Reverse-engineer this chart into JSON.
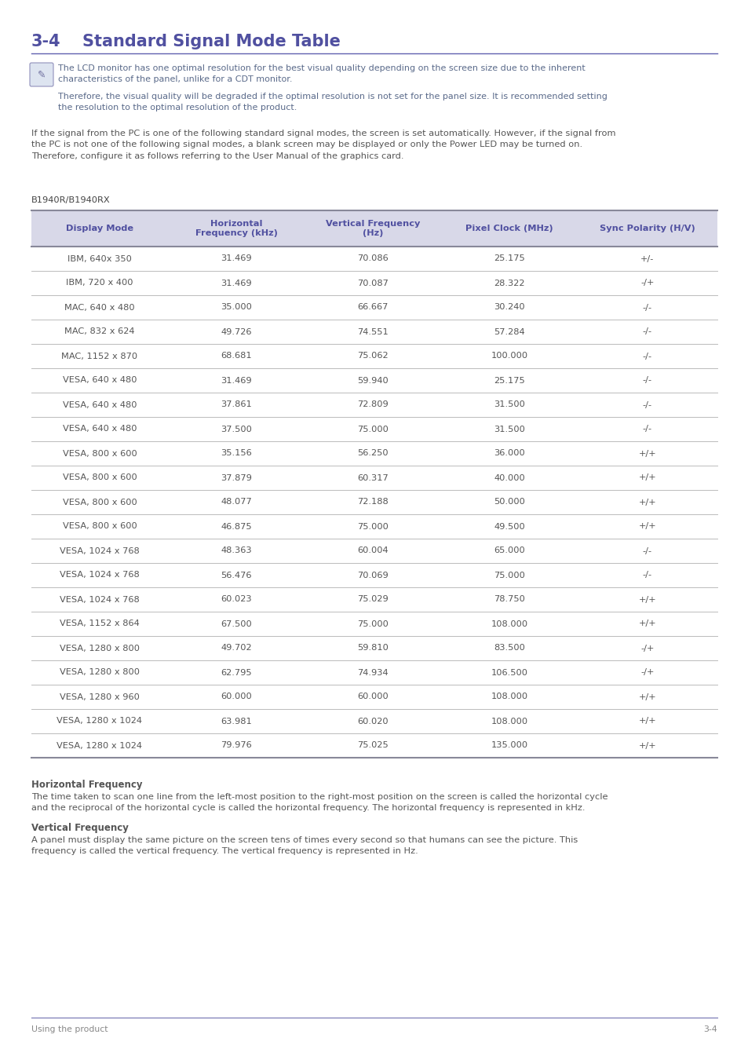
{
  "title_num": "3-4",
  "title_text": "Standard Signal Mode Table",
  "title_color": "#5050a0",
  "title_line_color": "#6060b0",
  "note_text1": "The LCD monitor has one optimal resolution for the best visual quality depending on the screen size due to the inherent\ncharacteristics of the panel, unlike for a CDT monitor.",
  "note_text2": "Therefore, the visual quality will be degraded if the optimal resolution is not set for the panel size. It is recommended setting\nthe resolution to the optimal resolution of the product.",
  "note_color": "#5a6a8a",
  "body_text": "If the signal from the PC is one of the following standard signal modes, the screen is set automatically. However, if the signal from\nthe PC is not one of the following signal modes, a blank screen may be displayed or only the Power LED may be turned on.\nTherefore, configure it as follows referring to the User Manual of the graphics card.",
  "body_color": "#555555",
  "model_label": "B1940R/B1940RX",
  "model_color": "#444444",
  "table_header": [
    "Display Mode",
    "Horizontal\nFrequency (kHz)",
    "Vertical Frequency\n(Hz)",
    "Pixel Clock (MHz)",
    "Sync Polarity (H/V)"
  ],
  "header_color": "#5050a0",
  "header_bg": "#d8d8e8",
  "table_data": [
    [
      "IBM, 640x 350",
      "31.469",
      "70.086",
      "25.175",
      "+/-"
    ],
    [
      "IBM, 720 x 400",
      "31.469",
      "70.087",
      "28.322",
      "-/+"
    ],
    [
      "MAC, 640 x 480",
      "35.000",
      "66.667",
      "30.240",
      "-/-"
    ],
    [
      "MAC, 832 x 624",
      "49.726",
      "74.551",
      "57.284",
      "-/-"
    ],
    [
      "MAC, 1152 x 870",
      "68.681",
      "75.062",
      "100.000",
      "-/-"
    ],
    [
      "VESA, 640 x 480",
      "31.469",
      "59.940",
      "25.175",
      "-/-"
    ],
    [
      "VESA, 640 x 480",
      "37.861",
      "72.809",
      "31.500",
      "-/-"
    ],
    [
      "VESA, 640 x 480",
      "37.500",
      "75.000",
      "31.500",
      "-/-"
    ],
    [
      "VESA, 800 x 600",
      "35.156",
      "56.250",
      "36.000",
      "+/+"
    ],
    [
      "VESA, 800 x 600",
      "37.879",
      "60.317",
      "40.000",
      "+/+"
    ],
    [
      "VESA, 800 x 600",
      "48.077",
      "72.188",
      "50.000",
      "+/+"
    ],
    [
      "VESA, 800 x 600",
      "46.875",
      "75.000",
      "49.500",
      "+/+"
    ],
    [
      "VESA, 1024 x 768",
      "48.363",
      "60.004",
      "65.000",
      "-/-"
    ],
    [
      "VESA, 1024 x 768",
      "56.476",
      "70.069",
      "75.000",
      "-/-"
    ],
    [
      "VESA, 1024 x 768",
      "60.023",
      "75.029",
      "78.750",
      "+/+"
    ],
    [
      "VESA, 1152 x 864",
      "67.500",
      "75.000",
      "108.000",
      "+/+"
    ],
    [
      "VESA, 1280 x 800",
      "49.702",
      "59.810",
      "83.500",
      "-/+"
    ],
    [
      "VESA, 1280 x 800",
      "62.795",
      "74.934",
      "106.500",
      "-/+"
    ],
    [
      "VESA, 1280 x 960",
      "60.000",
      "60.000",
      "108.000",
      "+/+"
    ],
    [
      "VESA, 1280 x 1024",
      "63.981",
      "60.020",
      "108.000",
      "+/+"
    ],
    [
      "VESA, 1280 x 1024",
      "79.976",
      "75.025",
      "135.000",
      "+/+"
    ]
  ],
  "cell_text_color": "#555555",
  "line_color": "#bbbbbb",
  "thick_line_color": "#888899",
  "hf_title": "Horizontal Frequency",
  "hf_text": "The time taken to scan one line from the left-most position to the right-most position on the screen is called the horizontal cycle\nand the reciprocal of the horizontal cycle is called the horizontal frequency. The horizontal frequency is represented in kHz.",
  "vf_title": "Vertical Frequency",
  "vf_text": "A panel must display the same picture on the screen tens of times every second so that humans can see the picture. This\nfrequency is called the vertical frequency. The vertical frequency is represented in Hz.",
  "footer_left": "Using the product",
  "footer_right": "3-4",
  "footer_color": "#888888",
  "footer_line_color": "#7070b0",
  "bg_color": "#ffffff"
}
